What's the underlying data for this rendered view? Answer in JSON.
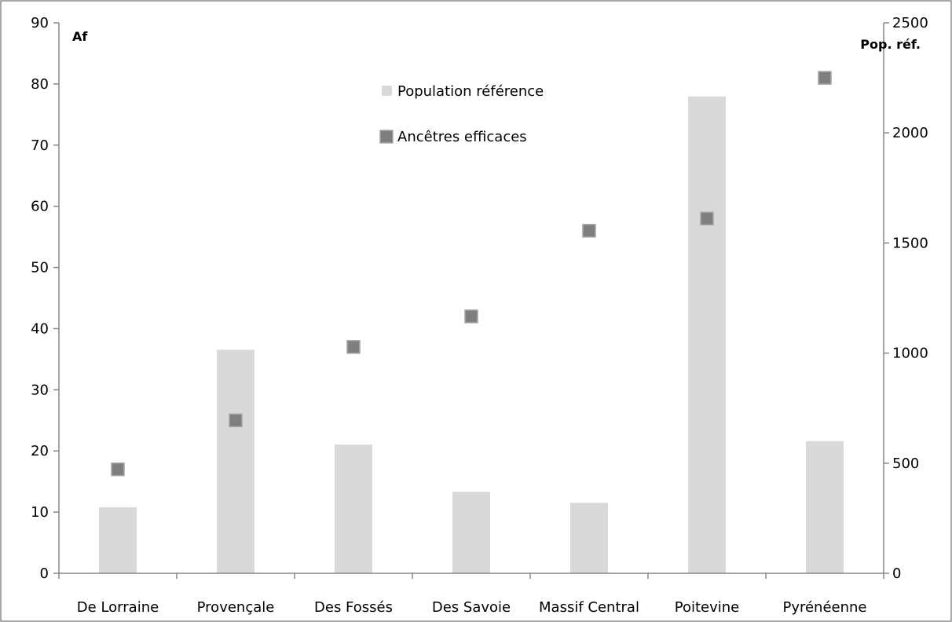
{
  "chart_data": {
    "type": "bar",
    "categories": [
      "De Lorraine",
      "Provençale",
      "Des Fossés",
      "Des Savoie",
      "Massif Central",
      "Poitevine",
      "Pyrénéenne"
    ],
    "series": [
      {
        "name": "Population référence",
        "type": "bar",
        "axis": "right",
        "color": "#d9d9d9",
        "values": [
          300,
          1015,
          585,
          370,
          320,
          2165,
          600
        ]
      },
      {
        "name": "Ancêtres efficaces",
        "type": "marker",
        "marker": "square",
        "axis": "left",
        "color": "#7f7f7f",
        "values": [
          17,
          25,
          37,
          42,
          56,
          58,
          81
        ]
      }
    ],
    "left_axis": {
      "label": "Af",
      "range": [
        0,
        90
      ],
      "ticks": [
        "0",
        "10",
        "20",
        "30",
        "40",
        "50",
        "60",
        "70",
        "80",
        "90"
      ]
    },
    "right_axis": {
      "label": "Pop. réf.",
      "range": [
        0,
        2500
      ],
      "ticks": [
        "0",
        "500",
        "1000",
        "1500",
        "2000",
        "2500"
      ]
    },
    "legend": {
      "placement": "top-center",
      "items": [
        "Population référence",
        "Ancêtres efficaces"
      ]
    },
    "grid": false
  }
}
